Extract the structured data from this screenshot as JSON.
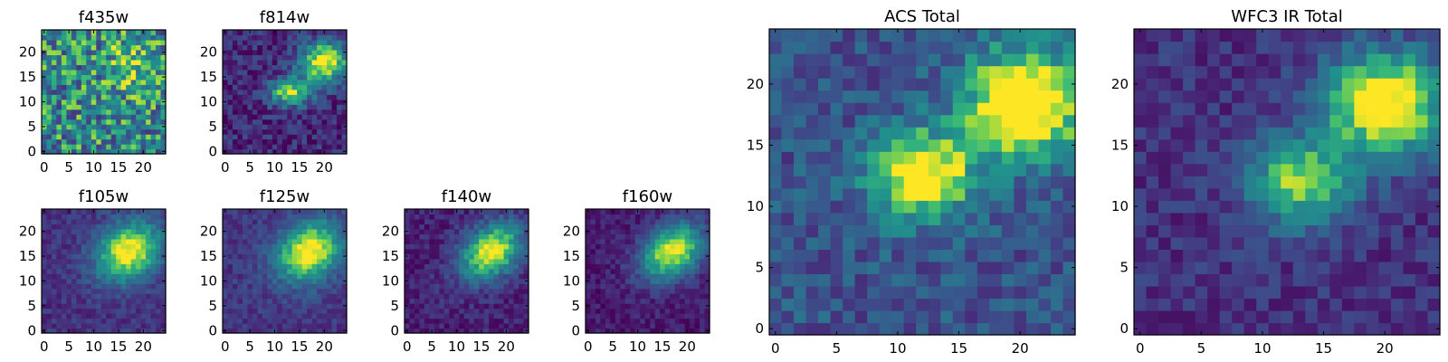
{
  "chart_data": [
    {
      "type": "heatmap",
      "title": "f435w",
      "xlabel": "",
      "ylabel": "",
      "xlim": [
        -0.5,
        24.5
      ],
      "ylim": [
        -0.5,
        24.5
      ],
      "xticks": [
        0,
        5,
        10,
        15,
        20
      ],
      "yticks": [
        0,
        5,
        10,
        15,
        20
      ],
      "colormap": "viridis",
      "grid": false,
      "components": [
        {
          "x": 17,
          "y": 17,
          "sx": 3,
          "sy": 3,
          "amp": 0.4
        }
      ],
      "base": 0.55,
      "noise": 0.35,
      "seed": 11
    },
    {
      "type": "heatmap",
      "title": "f814w",
      "xlabel": "",
      "ylabel": "",
      "xlim": [
        -0.5,
        24.5
      ],
      "ylim": [
        -0.5,
        24.5
      ],
      "xticks": [
        0,
        5,
        10,
        15,
        20
      ],
      "yticks": [
        0,
        5,
        10,
        15,
        20
      ],
      "colormap": "viridis",
      "grid": false,
      "components": [
        {
          "x": 13,
          "y": 12,
          "sx": 3,
          "sy": 2,
          "amp": 0.75
        },
        {
          "x": 20,
          "y": 18,
          "sx": 3.5,
          "sy": 3,
          "amp": 0.9
        }
      ],
      "base": 0.15,
      "noise": 0.17,
      "seed": 23
    },
    {
      "type": "heatmap",
      "title": "ACS Total",
      "xlabel": "",
      "ylabel": "",
      "xlim": [
        -0.5,
        24.5
      ],
      "ylim": [
        -0.5,
        24.5
      ],
      "xticks": [
        0,
        5,
        10,
        15,
        20
      ],
      "yticks": [
        0,
        5,
        10,
        15,
        20
      ],
      "colormap": "viridis",
      "grid": false,
      "components": [
        {
          "x": 12,
          "y": 12.5,
          "sx": 3,
          "sy": 2.5,
          "amp": 0.8
        },
        {
          "x": 20.5,
          "y": 18.5,
          "sx": 3.5,
          "sy": 3,
          "amp": 0.95
        }
      ],
      "base": 0.32,
      "noise": 0.16,
      "seed": 37
    },
    {
      "type": "heatmap",
      "title": "f105w",
      "xlabel": "",
      "ylabel": "",
      "xlim": [
        -0.5,
        24.5
      ],
      "ylim": [
        -0.5,
        24.5
      ],
      "xticks": [
        0,
        5,
        10,
        15,
        20
      ],
      "yticks": [
        0,
        5,
        10,
        15,
        20
      ],
      "colormap": "viridis",
      "grid": false,
      "components": [
        {
          "x": 17,
          "y": 16,
          "sx": 5,
          "sy": 4,
          "amp": 0.85,
          "rot": 0.6
        }
      ],
      "base": 0.18,
      "noise": 0.1,
      "seed": 41
    },
    {
      "type": "heatmap",
      "title": "f125w",
      "xlabel": "",
      "ylabel": "",
      "xlim": [
        -0.5,
        24.5
      ],
      "ylim": [
        -0.5,
        24.5
      ],
      "xticks": [
        0,
        5,
        10,
        15,
        20
      ],
      "yticks": [
        0,
        5,
        10,
        15,
        20
      ],
      "colormap": "viridis",
      "grid": false,
      "components": [
        {
          "x": 17,
          "y": 16,
          "sx": 5,
          "sy": 4,
          "amp": 0.85,
          "rot": 0.6
        }
      ],
      "base": 0.2,
      "noise": 0.1,
      "seed": 53
    },
    {
      "type": "heatmap",
      "title": "f140w",
      "xlabel": "",
      "ylabel": "",
      "xlim": [
        -0.5,
        24.5
      ],
      "ylim": [
        -0.5,
        24.5
      ],
      "xticks": [
        0,
        5,
        10,
        15,
        20
      ],
      "yticks": [
        0,
        5,
        10,
        15,
        20
      ],
      "colormap": "viridis",
      "grid": false,
      "components": [
        {
          "x": 17,
          "y": 16,
          "sx": 5,
          "sy": 3.5,
          "amp": 0.9,
          "rot": 0.65
        }
      ],
      "base": 0.12,
      "noise": 0.11,
      "seed": 67
    },
    {
      "type": "heatmap",
      "title": "f160w",
      "xlabel": "",
      "ylabel": "",
      "xlim": [
        -0.5,
        24.5
      ],
      "ylim": [
        -0.5,
        24.5
      ],
      "xticks": [
        0,
        5,
        10,
        15,
        20
      ],
      "yticks": [
        0,
        5,
        10,
        15,
        20
      ],
      "colormap": "viridis",
      "grid": false,
      "components": [
        {
          "x": 17,
          "y": 16,
          "sx": 5,
          "sy": 3.5,
          "amp": 0.9,
          "rot": 0.65
        }
      ],
      "base": 0.1,
      "noise": 0.1,
      "seed": 79
    },
    {
      "type": "heatmap",
      "title": "WFC3 IR Total",
      "xlabel": "",
      "ylabel": "",
      "xlim": [
        -0.5,
        24.5
      ],
      "ylim": [
        -0.5,
        24.5
      ],
      "xticks": [
        0,
        5,
        10,
        15,
        20
      ],
      "yticks": [
        0,
        5,
        10,
        15,
        20
      ],
      "colormap": "viridis",
      "grid": false,
      "components": [
        {
          "x": 13,
          "y": 12,
          "sx": 3,
          "sy": 2.5,
          "amp": 0.7
        },
        {
          "x": 20,
          "y": 18.5,
          "sx": 3.5,
          "sy": 3,
          "amp": 0.95
        }
      ],
      "base": 0.18,
      "noise": 0.12,
      "seed": 97
    }
  ]
}
